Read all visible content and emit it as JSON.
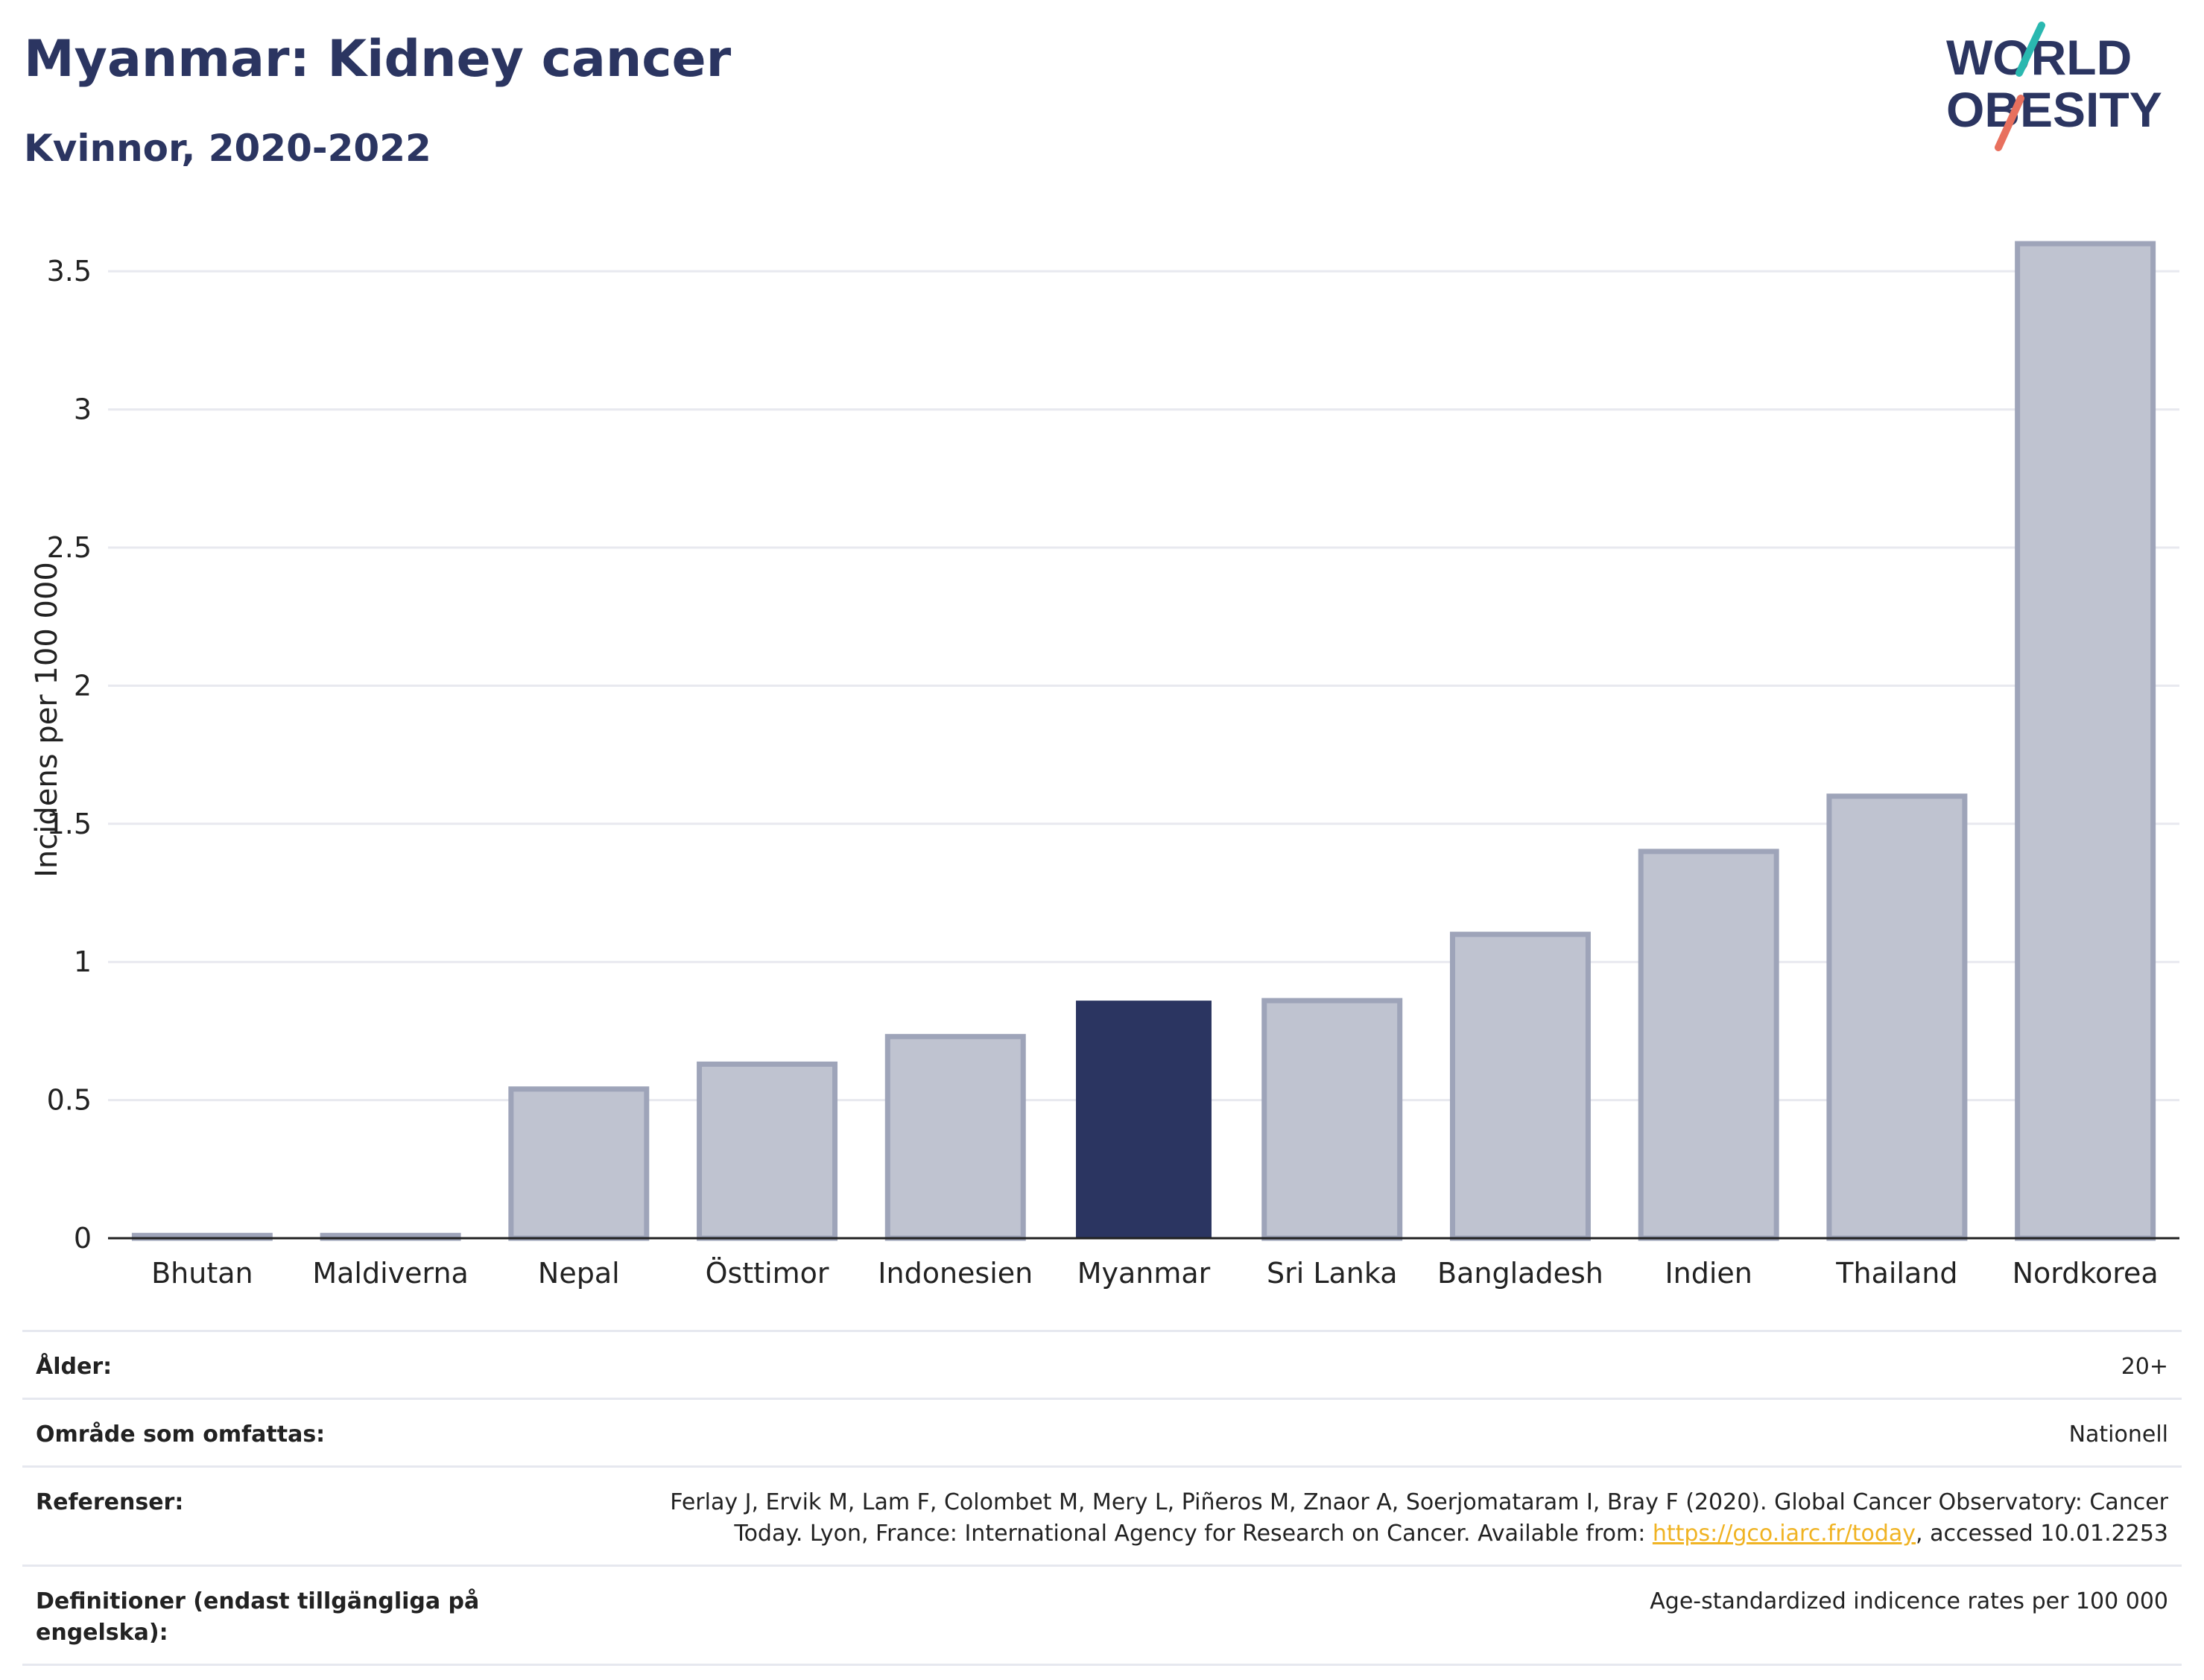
{
  "header": {
    "title": "Myanmar: Kidney cancer",
    "subtitle": "Kvinnor, 2020-2022"
  },
  "logo": {
    "line1": "WORLD",
    "line2": "OBESITY"
  },
  "colors": {
    "highlight": "#2b3561",
    "bar_fill": "#bfc3d0",
    "bar_stroke": "#9ea4b9",
    "grid": "#e8e9ef",
    "logo_teal": "#2ab8b0",
    "logo_coral": "#e8705e",
    "link": "#f0b323"
  },
  "chart_data": {
    "type": "bar",
    "title": "Myanmar: Kidney cancer",
    "subtitle": "Kvinnor, 2020-2022",
    "xlabel": "",
    "ylabel": "Incidens per 100 000",
    "categories": [
      "Bhutan",
      "Maldiverna",
      "Nepal",
      "Östtimor",
      "Indonesien",
      "Myanmar",
      "Sri Lanka",
      "Bangladesh",
      "Indien",
      "Thailand",
      "Nordkorea"
    ],
    "values": [
      0.01,
      0.01,
      0.54,
      0.63,
      0.73,
      0.86,
      0.86,
      1.1,
      1.4,
      1.6,
      3.6
    ],
    "highlight": "Myanmar",
    "ylim": [
      0,
      3.7
    ],
    "yticks": [
      0,
      0.5,
      1,
      1.5,
      2,
      2.5,
      3,
      3.5
    ],
    "ytick_labels": [
      "0",
      "0.5",
      "1",
      "1.5",
      "2",
      "2.5",
      "3",
      "3.5"
    ],
    "grid": true,
    "legend": "none"
  },
  "info": {
    "rows": [
      {
        "label": "Ålder:",
        "value": "20+"
      },
      {
        "label": "Område som omfattas:",
        "value": "Nationell"
      },
      {
        "label": "Referenser:",
        "value_line1": "Ferlay J, Ervik M, Lam F, Colombet M, Mery L, Piñeros M, Znaor A, Soerjomataram I, Bray F (2020). Global Cancer Observatory: Cancer",
        "value_line2_pre": "Today. Lyon, France: International Agency for Research on Cancer. Available from: ",
        "link": "https://gco.iarc.fr/today",
        "value_line2_post": ", accessed 10.01.2253"
      },
      {
        "label": "Definitioner (endast tillgängliga på engelska):",
        "value": "Age-standardized indicence rates per 100 000"
      }
    ]
  }
}
